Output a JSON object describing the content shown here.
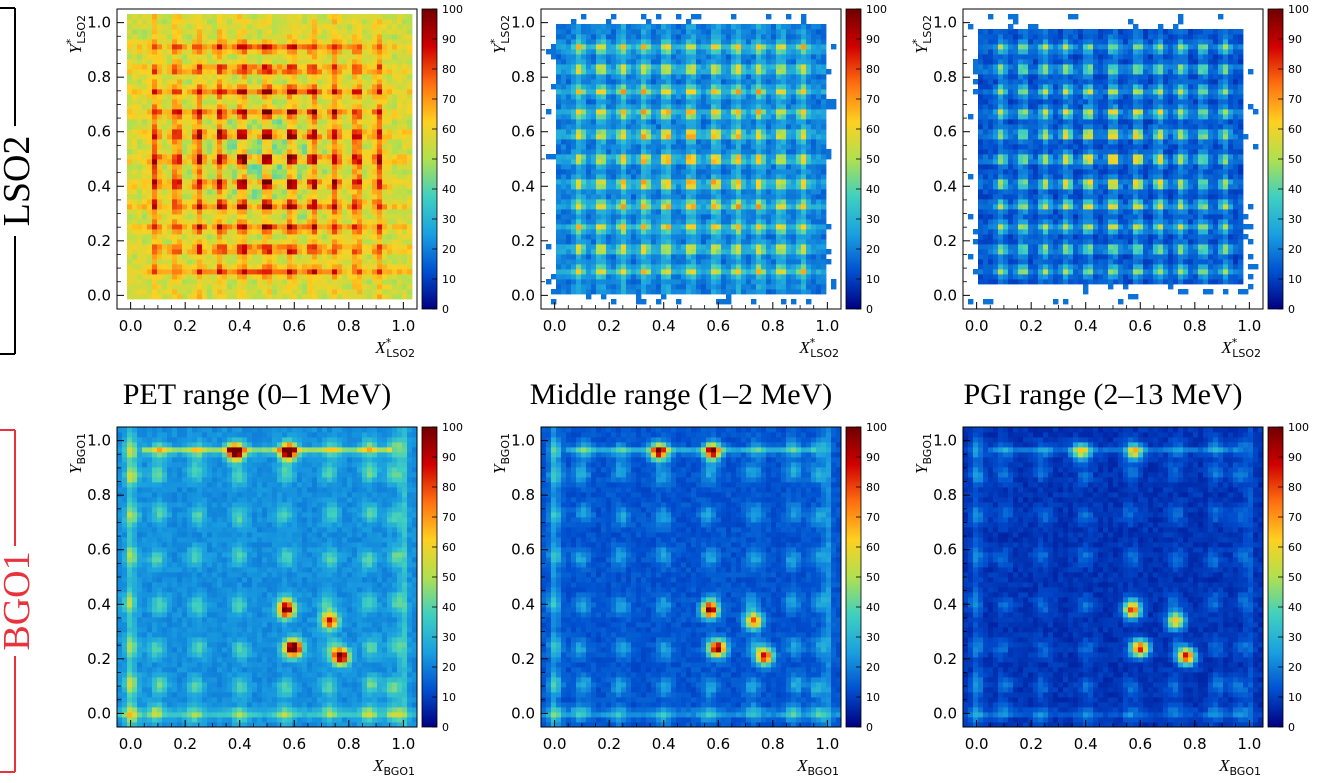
{
  "chart_data": {
    "type": "heatmap",
    "colorscale": [
      "#000080",
      "#0050d0",
      "#1aa0e0",
      "#40d0c0",
      "#b0e050",
      "#ffd020",
      "#ff7010",
      "#d00000",
      "#700000"
    ],
    "colorbar": {
      "min": 0,
      "max": 100,
      "ticks": [
        "0",
        "10",
        "20",
        "30",
        "40",
        "50",
        "60",
        "70",
        "80",
        "90",
        "100"
      ]
    },
    "axis_ticks": [
      "0.0",
      "0.2",
      "0.4",
      "0.6",
      "0.8",
      "1.0"
    ],
    "rows": [
      {
        "label": "LSO2",
        "color": "#000000",
        "x_axis": {
          "main": "X",
          "sup": "*",
          "sub": "LSO2"
        },
        "y_axis": {
          "main": "Y",
          "sup": "*",
          "sub": "LSO2"
        },
        "grid_lines": [
          0.09,
          0.17,
          0.25,
          0.33,
          0.41,
          0.5,
          0.59,
          0.67,
          0.75,
          0.83,
          0.91
        ]
      },
      {
        "label": "BGO1",
        "color": "#e8323c",
        "x_axis": {
          "main": "X",
          "sup": "",
          "sub": "BGO1"
        },
        "y_axis": {
          "main": "Y",
          "sup": "",
          "sub": "BGO1"
        },
        "grid_lines": [
          0.0,
          0.1,
          0.24,
          0.4,
          0.57,
          0.73,
          0.88,
          0.97
        ]
      }
    ],
    "columns": [
      {
        "caption": "PET range (0–1 MeV)",
        "energy_range_mev": [
          0,
          1
        ]
      },
      {
        "caption": "Middle range (1–2 MeV)",
        "energy_range_mev": [
          1,
          2
        ]
      },
      {
        "caption": "PGI range (2–13 MeV)",
        "energy_range_mev": [
          2,
          13
        ]
      }
    ],
    "x_range": [
      -0.05,
      1.05
    ],
    "y_range": [
      -0.05,
      1.05
    ],
    "bgo1_hotspots": [
      {
        "x": 0.6,
        "y": 0.24,
        "pet": 100,
        "middle": 96,
        "pgi": 86
      },
      {
        "x": 0.77,
        "y": 0.21,
        "pet": 98,
        "middle": 90,
        "pgi": 96
      },
      {
        "x": 0.57,
        "y": 0.38,
        "pet": 88,
        "middle": 95,
        "pgi": 80
      },
      {
        "x": 0.73,
        "y": 0.34,
        "pet": 80,
        "middle": 80,
        "pgi": 70
      },
      {
        "x": 0.38,
        "y": 0.96,
        "pet": 90,
        "middle": 82,
        "pgi": 52
      },
      {
        "x": 0.58,
        "y": 0.96,
        "pet": 86,
        "middle": 78,
        "pgi": 48
      }
    ]
  }
}
